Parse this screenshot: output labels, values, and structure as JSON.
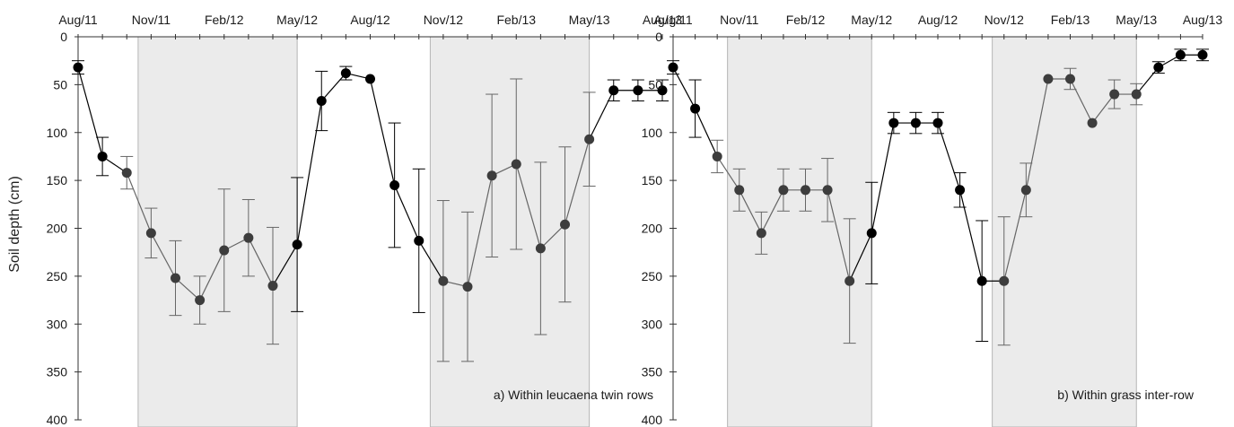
{
  "ylabel": "Soil depth (cm)",
  "colors": {
    "shade_fill": "#ebebeb",
    "shade_stroke": "#b5b5b5",
    "wet_season_marker": "#000000",
    "dry_season_marker": "#3d3d3d",
    "wet_season_line": "#000000",
    "dry_season_line": "#666666",
    "axis": "#333333"
  },
  "chart_data": [
    {
      "type": "line",
      "panel_label": "a) Within leucaena twin rows",
      "x_ticks": [
        "Aug/11",
        "Nov/11",
        "Feb/12",
        "May/12",
        "Aug/12",
        "Nov/12",
        "Feb/13",
        "May/13",
        "Aug/13"
      ],
      "x_range": [
        "2011-08-01",
        "2013-08-01"
      ],
      "ylim": [
        0,
        400
      ],
      "y_inverted": true,
      "y_ticks": [
        0,
        50,
        100,
        150,
        200,
        250,
        300,
        350,
        400
      ],
      "shaded_periods": [
        {
          "start": "2011-10-15",
          "end": "2012-05-01"
        },
        {
          "start": "2012-10-15",
          "end": "2013-05-01"
        }
      ],
      "points": [
        {
          "date": "2011-08-01",
          "depth": 32,
          "error": 7,
          "phase": "wet"
        },
        {
          "date": "2011-09-01",
          "depth": 125,
          "error": 20,
          "phase": "wet"
        },
        {
          "date": "2011-10-01",
          "depth": 142,
          "error": 17,
          "phase": "dry"
        },
        {
          "date": "2011-11-01",
          "depth": 205,
          "error": 26,
          "phase": "dry"
        },
        {
          "date": "2011-12-01",
          "depth": 252,
          "error": 39,
          "phase": "dry"
        },
        {
          "date": "2012-01-01",
          "depth": 275,
          "error": 25,
          "phase": "dry"
        },
        {
          "date": "2012-02-01",
          "depth": 223,
          "error": 64,
          "phase": "dry"
        },
        {
          "date": "2012-03-01",
          "depth": 210,
          "error": 40,
          "phase": "dry"
        },
        {
          "date": "2012-04-01",
          "depth": 260,
          "error": 61,
          "phase": "dry"
        },
        {
          "date": "2012-05-01",
          "depth": 217,
          "error": 70,
          "phase": "wet"
        },
        {
          "date": "2012-06-01",
          "depth": 67,
          "error": 31,
          "phase": "wet"
        },
        {
          "date": "2012-07-01",
          "depth": 38,
          "error": 7,
          "phase": "wet"
        },
        {
          "date": "2012-08-01",
          "depth": 44,
          "error": 0,
          "phase": "wet"
        },
        {
          "date": "2012-09-01",
          "depth": 155,
          "error": 65,
          "phase": "wet"
        },
        {
          "date": "2012-10-01",
          "depth": 213,
          "error": 75,
          "phase": "wet"
        },
        {
          "date": "2012-11-01",
          "depth": 255,
          "error": 84,
          "phase": "dry"
        },
        {
          "date": "2012-12-01",
          "depth": 261,
          "error": 78,
          "phase": "dry"
        },
        {
          "date": "2013-01-01",
          "depth": 145,
          "error": 85,
          "phase": "dry"
        },
        {
          "date": "2013-02-01",
          "depth": 133,
          "error": 89,
          "phase": "dry"
        },
        {
          "date": "2013-03-01",
          "depth": 221,
          "error": 90,
          "phase": "dry"
        },
        {
          "date": "2013-04-01",
          "depth": 196,
          "error": 81,
          "phase": "dry"
        },
        {
          "date": "2013-05-01",
          "depth": 107,
          "error": 49,
          "phase": "dry"
        },
        {
          "date": "2013-06-01",
          "depth": 56,
          "error": 11,
          "phase": "wet"
        },
        {
          "date": "2013-07-01",
          "depth": 56,
          "error": 11,
          "phase": "wet"
        },
        {
          "date": "2013-08-01",
          "depth": 56,
          "error": 11,
          "phase": "wet"
        }
      ]
    },
    {
      "type": "line",
      "panel_label": "b) Within grass inter-row",
      "x_ticks": [
        "Aug/11",
        "Nov/11",
        "Feb/12",
        "May/12",
        "Aug/12",
        "Nov/12",
        "Feb/13",
        "May/13",
        "Aug/13"
      ],
      "x_range": [
        "2011-08-01",
        "2013-08-01"
      ],
      "ylim": [
        0,
        400
      ],
      "y_inverted": true,
      "y_ticks": [
        0,
        50,
        100,
        150,
        200,
        250,
        300,
        350,
        400
      ],
      "shaded_periods": [
        {
          "start": "2011-10-15",
          "end": "2012-05-01"
        },
        {
          "start": "2012-10-15",
          "end": "2013-05-01"
        }
      ],
      "points": [
        {
          "date": "2011-08-01",
          "depth": 32,
          "error": 7,
          "phase": "wet"
        },
        {
          "date": "2011-09-01",
          "depth": 75,
          "error": 30,
          "phase": "wet"
        },
        {
          "date": "2011-10-01",
          "depth": 125,
          "error": 17,
          "phase": "dry"
        },
        {
          "date": "2011-11-01",
          "depth": 160,
          "error": 22,
          "phase": "dry"
        },
        {
          "date": "2011-12-01",
          "depth": 205,
          "error": 22,
          "phase": "dry"
        },
        {
          "date": "2012-01-01",
          "depth": 160,
          "error": 22,
          "phase": "dry"
        },
        {
          "date": "2012-02-01",
          "depth": 160,
          "error": 22,
          "phase": "dry"
        },
        {
          "date": "2012-03-01",
          "depth": 160,
          "error": 33,
          "phase": "dry"
        },
        {
          "date": "2012-04-01",
          "depth": 255,
          "error": 65,
          "phase": "dry"
        },
        {
          "date": "2012-05-01",
          "depth": 205,
          "error": 53,
          "phase": "wet"
        },
        {
          "date": "2012-06-01",
          "depth": 90,
          "error": 11,
          "phase": "wet"
        },
        {
          "date": "2012-07-01",
          "depth": 90,
          "error": 11,
          "phase": "wet"
        },
        {
          "date": "2012-08-01",
          "depth": 90,
          "error": 11,
          "phase": "wet"
        },
        {
          "date": "2012-09-01",
          "depth": 160,
          "error": 18,
          "phase": "wet"
        },
        {
          "date": "2012-10-01",
          "depth": 255,
          "error": 63,
          "phase": "wet"
        },
        {
          "date": "2012-11-01",
          "depth": 255,
          "error": 67,
          "phase": "dry"
        },
        {
          "date": "2012-12-01",
          "depth": 160,
          "error": 28,
          "phase": "dry"
        },
        {
          "date": "2013-01-01",
          "depth": 44,
          "error": 0,
          "phase": "dry"
        },
        {
          "date": "2013-02-01",
          "depth": 44,
          "error": 11,
          "phase": "dry"
        },
        {
          "date": "2013-03-01",
          "depth": 90,
          "error": 0,
          "phase": "dry"
        },
        {
          "date": "2013-04-01",
          "depth": 60,
          "error": 15,
          "phase": "dry"
        },
        {
          "date": "2013-05-01",
          "depth": 60,
          "error": 11,
          "phase": "dry"
        },
        {
          "date": "2013-06-01",
          "depth": 32,
          "error": 6,
          "phase": "wet"
        },
        {
          "date": "2013-07-01",
          "depth": 19,
          "error": 6,
          "phase": "wet"
        },
        {
          "date": "2013-08-01",
          "depth": 19,
          "error": 6,
          "phase": "wet"
        }
      ]
    }
  ]
}
